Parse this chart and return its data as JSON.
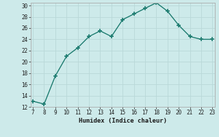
{
  "x": [
    7,
    8,
    9,
    10,
    11,
    12,
    13,
    14,
    15,
    16,
    17,
    18,
    19,
    20,
    21,
    22,
    23
  ],
  "y": [
    13,
    12.5,
    17.5,
    21,
    22.5,
    24.5,
    25.5,
    24.5,
    27.5,
    28.5,
    29.5,
    30.5,
    29,
    26.5,
    24.5,
    24,
    24
  ],
  "xlim": [
    7,
    23
  ],
  "ylim": [
    12,
    30
  ],
  "yticks": [
    12,
    14,
    16,
    18,
    20,
    22,
    24,
    26,
    28,
    30
  ],
  "xticks": [
    7,
    8,
    9,
    10,
    11,
    12,
    13,
    14,
    15,
    16,
    17,
    18,
    19,
    20,
    21,
    22,
    23
  ],
  "xlabel": "Humidex (Indice chaleur)",
  "line_color": "#1a7a6e",
  "marker_color": "#1a7a6e",
  "bg_color": "#cdeaea",
  "grid_color": "#b8d8d8",
  "spine_color": "#aaaaaa"
}
